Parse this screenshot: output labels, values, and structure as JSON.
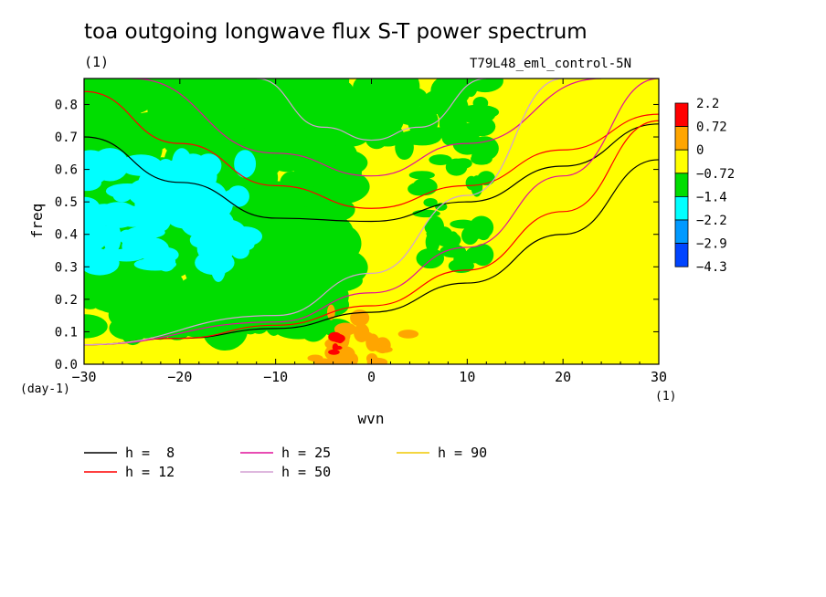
{
  "title": "toa outgoing longwave flux S-T power spectrum",
  "subtitle_left": "(1)",
  "subtitle_right": "T79L48_eml_control-5N",
  "chart_data": {
    "type": "heatmap",
    "title": "toa outgoing longwave flux S-T power spectrum",
    "xlabel": "wvn",
    "ylabel": "freq",
    "x_units": "(1)",
    "y_units": "(day-1)",
    "xlim": [
      -30,
      30
    ],
    "ylim": [
      0,
      0.88
    ],
    "x_ticks": [
      -30,
      -20,
      -10,
      0,
      10,
      20,
      30
    ],
    "x_tick_labels": [
      "−30",
      "−20",
      "−10",
      "0",
      "10",
      "20",
      "30"
    ],
    "y_ticks": [
      0.0,
      0.1,
      0.2,
      0.3,
      0.4,
      0.5,
      0.6,
      0.7,
      0.8
    ],
    "y_tick_labels": [
      "0.0",
      "0.1",
      "0.2",
      "0.3",
      "0.4",
      "0.5",
      "0.6",
      "0.7",
      "0.8"
    ],
    "colorbar": {
      "labels": [
        "2.2",
        "0.72",
        "0",
        "−0.72",
        "−1.4",
        "−2.2",
        "−2.9",
        "−4.3"
      ],
      "colors": [
        "#ff0000",
        "#ffa500",
        "#ffff00",
        "#00dd00",
        "#00ffff",
        "#0099ff",
        "#0044ff"
      ]
    },
    "contour_levels": [
      -4.3,
      -2.9,
      -2.2,
      -1.4,
      -0.72,
      0,
      0.72,
      2.2
    ],
    "background_level_color": "#ffff00",
    "regions": [
      {
        "level": "-1.4 to -0.72",
        "color": "#00dd00",
        "x": [
          -30,
          -3
        ],
        "y": [
          0.1,
          0.88
        ]
      },
      {
        "level": "-1.4 to -0.72",
        "color": "#00dd00",
        "x": [
          -10,
          12
        ],
        "y": [
          0.65,
          0.88
        ]
      },
      {
        "level": "-1.4 to -0.72",
        "color": "#00dd00",
        "x": [
          5,
          12
        ],
        "y": [
          0.3,
          0.65
        ]
      },
      {
        "level": "-2.2 to -1.4",
        "color": "#00ffff",
        "x": [
          -30,
          -13
        ],
        "y": [
          0.3,
          0.62
        ]
      },
      {
        "level": "0 to 0.72",
        "color": "#ffa500",
        "x": [
          -6,
          4
        ],
        "y": [
          0.0,
          0.16
        ]
      },
      {
        "level": "0.72 to 2.2",
        "color": "#ff0000",
        "x": [
          -4,
          -3
        ],
        "y": [
          0.0,
          0.13
        ]
      }
    ],
    "legend": {
      "placement": "bottom",
      "entries": [
        {
          "name": "h =  8",
          "color": "#000000"
        },
        {
          "name": "h = 25",
          "color": "#e0109a"
        },
        {
          "name": "h = 90",
          "color": "#f0c800"
        },
        {
          "name": "h = 12",
          "color": "#ff0000"
        },
        {
          "name": "h = 50",
          "color": "#d4a0d4"
        }
      ]
    },
    "series": [
      {
        "name": "h =  8",
        "color": "#000000",
        "group": "rossby_gravity",
        "x": [
          -30,
          -20,
          -10,
          0,
          10,
          20,
          30
        ],
        "y": [
          0.7,
          0.56,
          0.45,
          0.44,
          0.5,
          0.61,
          0.74
        ]
      },
      {
        "name": "h =  8",
        "color": "#000000",
        "group": "kelvin",
        "x": [
          -30,
          -20,
          -10,
          0,
          10,
          20,
          30
        ],
        "y": [
          0.06,
          0.08,
          0.11,
          0.16,
          0.25,
          0.4,
          0.63
        ]
      },
      {
        "name": "h = 12",
        "color": "#ff0000",
        "group": "rossby_gravity",
        "x": [
          -30,
          -20,
          -10,
          0,
          10,
          20,
          30
        ],
        "y": [
          0.84,
          0.68,
          0.55,
          0.48,
          0.55,
          0.66,
          0.77
        ]
      },
      {
        "name": "h = 12",
        "color": "#ff0000",
        "group": "kelvin",
        "x": [
          -30,
          -20,
          -10,
          0,
          10,
          20,
          30
        ],
        "y": [
          0.06,
          0.08,
          0.12,
          0.18,
          0.29,
          0.47,
          0.75
        ]
      },
      {
        "name": "h = 25",
        "color": "#e0109a",
        "group": "rossby_gravity",
        "x": [
          -25,
          -10,
          0,
          10,
          24
        ],
        "y": [
          0.88,
          0.65,
          0.58,
          0.68,
          0.88
        ]
      },
      {
        "name": "h = 25",
        "color": "#e0109a",
        "group": "kelvin",
        "x": [
          -30,
          -10,
          0,
          10,
          20,
          30
        ],
        "y": [
          0.06,
          0.13,
          0.22,
          0.36,
          0.58,
          0.88
        ]
      },
      {
        "name": "h = 50",
        "color": "#d4a0d4",
        "group": "kelvin",
        "x": [
          -30,
          -10,
          0,
          10,
          20
        ],
        "y": [
          0.06,
          0.15,
          0.28,
          0.52,
          0.88
        ]
      },
      {
        "name": "h = 50",
        "color": "#d4a0d4",
        "group": "rossby_gravity",
        "x": [
          -12,
          -5,
          0,
          5,
          12
        ],
        "y": [
          0.88,
          0.73,
          0.69,
          0.73,
          0.88
        ]
      }
    ]
  }
}
